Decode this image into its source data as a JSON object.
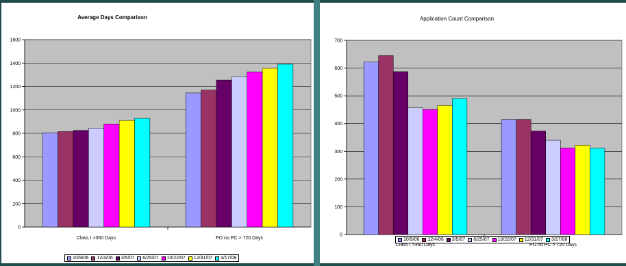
{
  "chart_data": [
    {
      "type": "bar",
      "title": "Average Days Comparison",
      "categories": [
        "Class I >360 Days",
        "PO no PC > 720 Days"
      ],
      "ylim": [
        0,
        1600
      ],
      "yticks": [
        0,
        200,
        400,
        600,
        800,
        1000,
        1200,
        1400,
        1600
      ],
      "grid": true,
      "legend": "bottom",
      "series": [
        {
          "name": "10/9/06",
          "color": "#9999ff",
          "values": [
            805,
            1145
          ]
        },
        {
          "name": "12/4/06",
          "color": "#993366",
          "values": [
            815,
            1170
          ]
        },
        {
          "name": "3/5/07",
          "color": "#660066",
          "values": [
            825,
            1255
          ]
        },
        {
          "name": "6/25/07",
          "color": "#ccccff",
          "values": [
            845,
            1285
          ]
        },
        {
          "name": "10/22/07",
          "color": "#ff00ff",
          "values": [
            880,
            1325
          ]
        },
        {
          "name": "12/31/07",
          "color": "#ffff00",
          "values": [
            910,
            1355
          ]
        },
        {
          "name": "3/17/08",
          "color": "#00ffff",
          "values": [
            928,
            1390
          ]
        }
      ]
    },
    {
      "type": "bar",
      "title": "Application Count Comparison",
      "categories": [
        "Class I >360 Days",
        "PO no PC > 720 Days"
      ],
      "ylim": [
        0,
        700
      ],
      "yticks": [
        0,
        100,
        200,
        300,
        400,
        500,
        600,
        700
      ],
      "grid": true,
      "legend": "bottom",
      "series": [
        {
          "name": "10/9/06",
          "color": "#9999ff",
          "values": [
            622,
            415
          ]
        },
        {
          "name": "12/4/06",
          "color": "#993366",
          "values": [
            645,
            415
          ]
        },
        {
          "name": "3/5/07",
          "color": "#660066",
          "values": [
            587,
            373
          ]
        },
        {
          "name": "6/25/07",
          "color": "#ccccff",
          "values": [
            457,
            340
          ]
        },
        {
          "name": "10/22/07",
          "color": "#ff00ff",
          "values": [
            451,
            312
          ]
        },
        {
          "name": "12/31/07",
          "color": "#ffff00",
          "values": [
            465,
            322
          ]
        },
        {
          "name": "3/17/08",
          "color": "#00ffff",
          "values": [
            490,
            311
          ]
        }
      ]
    }
  ]
}
